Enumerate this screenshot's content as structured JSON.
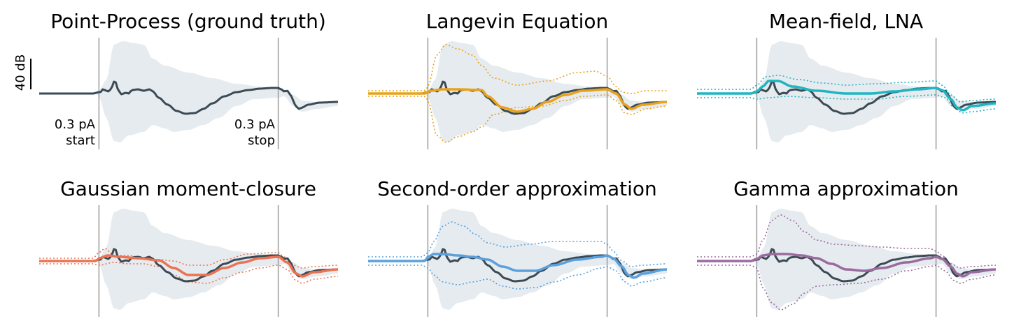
{
  "chart_data": {
    "type": "line",
    "scale_bar": {
      "label": "40 dB",
      "value": 40,
      "units": "dB"
    },
    "markers": [
      {
        "position": "start",
        "label_lines": [
          "0.3 pA",
          "start"
        ]
      },
      {
        "position": "stop",
        "label_lines": [
          "0.3 pA",
          "stop"
        ]
      }
    ],
    "colors": {
      "ground_truth": "#3b4a54",
      "band": "#e6ebef",
      "marker": "#9a9a9a"
    },
    "panels": [
      {
        "title": "Point-Process (ground truth)",
        "color": "#3b4a54",
        "has_approx": false
      },
      {
        "title": "Langevin Equation",
        "color": "#e8a21c",
        "has_approx": true
      },
      {
        "title": "Mean-field, LNA",
        "color": "#1fb5c2",
        "has_approx": true
      },
      {
        "title": "Gaussian moment-closure",
        "color": "#ea7352",
        "has_approx": true
      },
      {
        "title": "Second-order approximation",
        "color": "#5aa0dd",
        "has_approx": true
      },
      {
        "title": "Gamma approximation",
        "color": "#9a6b9e",
        "has_approx": true
      }
    ]
  }
}
